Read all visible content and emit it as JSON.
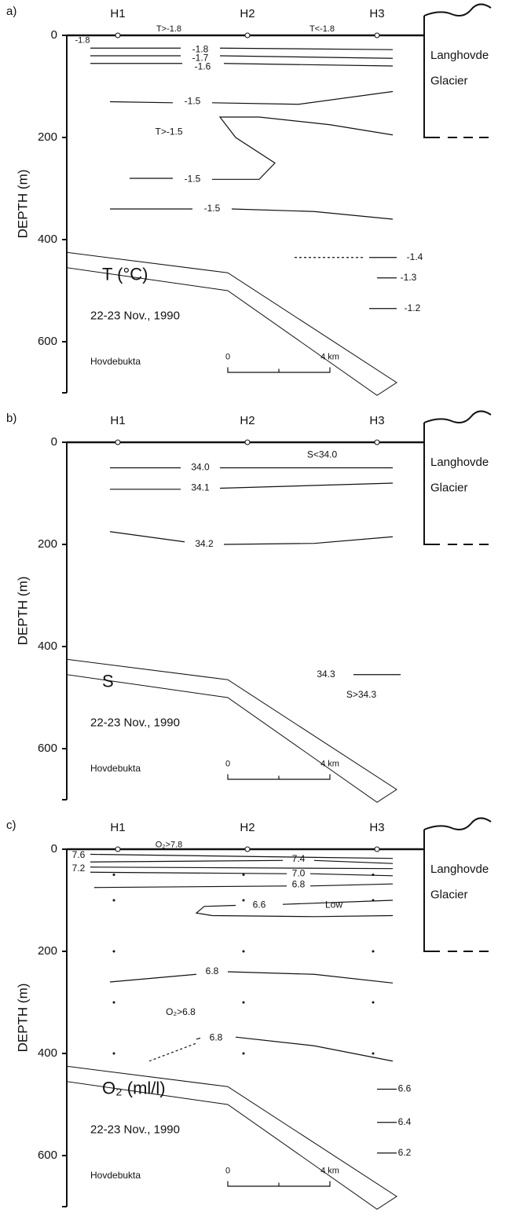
{
  "panels": [
    {
      "letter": "a)",
      "variable": "T (°C)",
      "date": "22-23 Nov., 1990",
      "place": "Hovdebukta",
      "axis_label": "DEPTH (m)",
      "depth_ticks": [
        0,
        200,
        400,
        600
      ],
      "stations": [
        "H1",
        "H2",
        "H3"
      ],
      "glacier": [
        "Langhovde",
        "Glacier"
      ],
      "scale": [
        "0",
        "4 km"
      ],
      "contour_labels": [
        "T>-1.8",
        "-1.8",
        "T<-1.8",
        "-1.8",
        "-1.7",
        "-1.6",
        "-1.5",
        "T>-1.5",
        "-1.5",
        "-1.5",
        "-1.4",
        "-1.3",
        "-1.2"
      ]
    },
    {
      "letter": "b)",
      "variable": "S",
      "date": "22-23 Nov., 1990",
      "place": "Hovdebukta",
      "axis_label": "DEPTH (m)",
      "depth_ticks": [
        0,
        200,
        400,
        600
      ],
      "stations": [
        "H1",
        "H2",
        "H3"
      ],
      "glacier": [
        "Langhovde",
        "Glacier"
      ],
      "scale": [
        "0",
        "4 km"
      ],
      "contour_labels": [
        "S<34.0",
        "34.0",
        "34.1",
        "34.2",
        "34.3",
        "S>34.3"
      ]
    },
    {
      "letter": "c)",
      "variable": "O₂ (ml/l)",
      "date": "22-23 Nov., 1990",
      "place": "Hovdebukta",
      "axis_label": "DEPTH (m)",
      "depth_ticks": [
        0,
        200,
        400,
        600
      ],
      "stations": [
        "H1",
        "H2",
        "H3"
      ],
      "glacier": [
        "Langhovde",
        "Glacier"
      ],
      "scale": [
        "0",
        "4 km"
      ],
      "contour_labels": [
        "O₂>7.8",
        "7.6",
        "7.2",
        "7.4",
        "7.0",
        "6.8",
        "6.6",
        "Low",
        "6.8",
        "O₂>6.8",
        "6.8",
        "6.6",
        "6.4",
        "6.2"
      ]
    }
  ]
}
